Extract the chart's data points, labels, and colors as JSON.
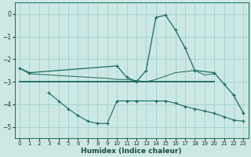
{
  "xlabel": "Humidex (Indice chaleur)",
  "background_color": "#cce8e4",
  "grid_color": "#99ccc8",
  "line_color": "#1a6b5e",
  "xlim": [
    -0.5,
    23.5
  ],
  "ylim": [
    -5.5,
    0.5
  ],
  "yticks": [
    0,
    -1,
    -2,
    -3,
    -4,
    -5
  ],
  "xticks": [
    0,
    1,
    2,
    3,
    4,
    5,
    6,
    7,
    8,
    9,
    10,
    11,
    12,
    13,
    14,
    15,
    16,
    17,
    18,
    19,
    20,
    21,
    22,
    23
  ],
  "line1_x": [
    0,
    1,
    10,
    11,
    12,
    13,
    14,
    15,
    16,
    17,
    18,
    20,
    21,
    22,
    23
  ],
  "line1_y": [
    -2.4,
    -2.6,
    -2.3,
    -2.8,
    -3.0,
    -2.5,
    -0.15,
    -0.05,
    -0.7,
    -1.5,
    -2.5,
    -2.6,
    -3.1,
    -3.6,
    -4.4
  ],
  "line2_x": [
    0,
    1,
    2,
    3,
    4,
    5,
    6,
    7,
    8,
    9,
    10,
    11,
    12,
    13,
    14,
    15,
    16,
    17,
    18,
    19,
    20
  ],
  "line2_y": [
    -3.0,
    -3.0,
    -3.0,
    -3.0,
    -3.0,
    -3.0,
    -3.0,
    -3.0,
    -3.0,
    -3.0,
    -3.0,
    -3.0,
    -3.0,
    -3.0,
    -3.0,
    -3.0,
    -3.0,
    -3.0,
    -3.0,
    -3.0,
    -3.0
  ],
  "line3_x": [
    0,
    1,
    9,
    10,
    11,
    12,
    13,
    14,
    15,
    16,
    17,
    18,
    19,
    20
  ],
  "line3_y": [
    -2.4,
    -2.65,
    -2.85,
    -2.9,
    -2.9,
    -2.95,
    -3.0,
    -2.9,
    -2.75,
    -2.6,
    -2.55,
    -2.5,
    -2.7,
    -2.65
  ],
  "line4_x": [
    3,
    4,
    5,
    6,
    7,
    8,
    9,
    10,
    11,
    12,
    14,
    15,
    16,
    17,
    18,
    19,
    20,
    21,
    22,
    23
  ],
  "line4_y": [
    -3.5,
    -3.85,
    -4.2,
    -4.5,
    -4.75,
    -4.85,
    -4.85,
    -3.85,
    -3.85,
    -3.85,
    -3.85,
    -3.85,
    -3.95,
    -4.1,
    -4.2,
    -4.3,
    -4.4,
    -4.55,
    -4.7,
    -4.75
  ]
}
